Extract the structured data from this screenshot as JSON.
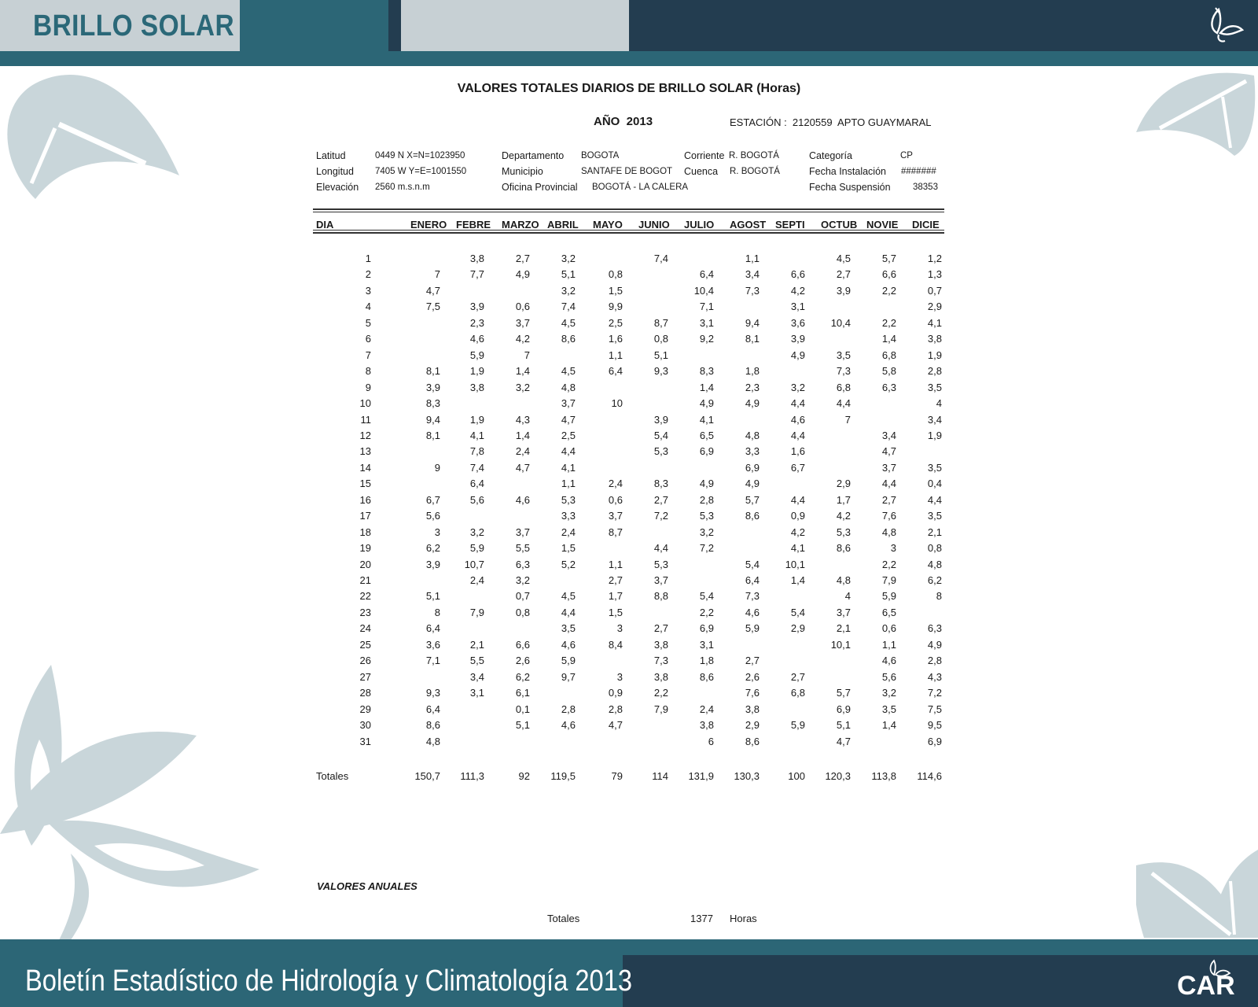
{
  "header": {
    "section_title": "BRILLO SOLAR"
  },
  "footer": {
    "title": "Boletín Estadístico de Hidrología y Climatología 2013",
    "logo_text": "CAR"
  },
  "document": {
    "title": "VALORES TOTALES DIARIOS DE BRILLO SOLAR (Horas)",
    "year_label": "AÑO  2013",
    "station": "ESTACIÓN :  2120559  APTO GUAYMARAL",
    "meta": {
      "latitud_label": "Latitud",
      "latitud_value": "0449 N X=N=1023950",
      "longitud_label": "Longitud",
      "longitud_value": "7405 W Y=E=1001550",
      "elevacion_label": "Elevación",
      "elevacion_value": "2560 m.s.n.m",
      "departamento_label": "Departamento",
      "departamento_value": "BOGOTA",
      "municipio_label": "Municipio",
      "municipio_value": "SANTAFE DE BOGOT",
      "oficina_label": "Oficina Provincial",
      "oficina_value": "BOGOTÁ - LA CALERA",
      "corriente_label": "Corriente",
      "corriente_value": "R. BOGOTÁ",
      "cuenca_label": "Cuenca",
      "cuenca_value": "R. BOGOTÁ",
      "categoria_label": "Categoría",
      "categoria_value": "CP",
      "instalacion_label": "Fecha Instalación",
      "instalacion_value": "#######",
      "suspension_label": "Fecha Suspensión",
      "suspension_value": "38353"
    },
    "table": {
      "day_header": "DIA",
      "months": [
        "ENERO",
        "FEBRE",
        "MARZO",
        "ABRIL",
        "MAYO",
        "JUNIO",
        "JULIO",
        "AGOST",
        "SEPTI",
        "OCTUB",
        "NOVIE",
        "DICIE"
      ],
      "rows": [
        [
          "1",
          "",
          "3,8",
          "2,7",
          "3,2",
          "",
          "7,4",
          "",
          "1,1",
          "",
          "4,5",
          "5,7",
          "1,2"
        ],
        [
          "2",
          "7",
          "7,7",
          "4,9",
          "5,1",
          "0,8",
          "",
          "6,4",
          "3,4",
          "6,6",
          "2,7",
          "6,6",
          "1,3"
        ],
        [
          "3",
          "4,7",
          "",
          "",
          "3,2",
          "1,5",
          "",
          "10,4",
          "7,3",
          "4,2",
          "3,9",
          "2,2",
          "0,7"
        ],
        [
          "4",
          "7,5",
          "3,9",
          "0,6",
          "7,4",
          "9,9",
          "",
          "7,1",
          "",
          "3,1",
          "",
          "",
          "2,9"
        ],
        [
          "5",
          "",
          "2,3",
          "3,7",
          "4,5",
          "2,5",
          "8,7",
          "3,1",
          "9,4",
          "3,6",
          "10,4",
          "2,2",
          "4,1"
        ],
        [
          "6",
          "",
          "4,6",
          "4,2",
          "8,6",
          "1,6",
          "0,8",
          "9,2",
          "8,1",
          "3,9",
          "",
          "1,4",
          "3,8"
        ],
        [
          "7",
          "",
          "5,9",
          "7",
          "",
          "1,1",
          "5,1",
          "",
          "",
          "4,9",
          "3,5",
          "6,8",
          "1,9"
        ],
        [
          "8",
          "8,1",
          "1,9",
          "1,4",
          "4,5",
          "6,4",
          "9,3",
          "8,3",
          "1,8",
          "",
          "7,3",
          "5,8",
          "2,8"
        ],
        [
          "9",
          "3,9",
          "3,8",
          "3,2",
          "4,8",
          "",
          "",
          "1,4",
          "2,3",
          "3,2",
          "6,8",
          "6,3",
          "3,5"
        ],
        [
          "10",
          "8,3",
          "",
          "",
          "3,7",
          "10",
          "",
          "4,9",
          "4,9",
          "4,4",
          "4,4",
          "",
          "4"
        ],
        [
          "11",
          "9,4",
          "1,9",
          "4,3",
          "4,7",
          "",
          "3,9",
          "4,1",
          "",
          "4,6",
          "7",
          "",
          "3,4"
        ],
        [
          "12",
          "8,1",
          "4,1",
          "1,4",
          "2,5",
          "",
          "5,4",
          "6,5",
          "4,8",
          "4,4",
          "",
          "3,4",
          "1,9"
        ],
        [
          "13",
          "",
          "7,8",
          "2,4",
          "4,4",
          "",
          "5,3",
          "6,9",
          "3,3",
          "1,6",
          "",
          "4,7",
          ""
        ],
        [
          "14",
          "9",
          "7,4",
          "4,7",
          "4,1",
          "",
          "",
          "",
          "6,9",
          "6,7",
          "",
          "3,7",
          "3,5"
        ],
        [
          "15",
          "",
          "6,4",
          "",
          "1,1",
          "2,4",
          "8,3",
          "4,9",
          "4,9",
          "",
          "2,9",
          "4,4",
          "0,4"
        ],
        [
          "16",
          "6,7",
          "5,6",
          "4,6",
          "5,3",
          "0,6",
          "2,7",
          "2,8",
          "5,7",
          "4,4",
          "1,7",
          "2,7",
          "4,4"
        ],
        [
          "17",
          "5,6",
          "",
          "",
          "3,3",
          "3,7",
          "7,2",
          "5,3",
          "8,6",
          "0,9",
          "4,2",
          "7,6",
          "3,5"
        ],
        [
          "18",
          "3",
          "3,2",
          "3,7",
          "2,4",
          "8,7",
          "",
          "3,2",
          "",
          "4,2",
          "5,3",
          "4,8",
          "2,1"
        ],
        [
          "19",
          "6,2",
          "5,9",
          "5,5",
          "1,5",
          "",
          "4,4",
          "7,2",
          "",
          "4,1",
          "8,6",
          "3",
          "0,8"
        ],
        [
          "20",
          "3,9",
          "10,7",
          "6,3",
          "5,2",
          "1,1",
          "5,3",
          "",
          "5,4",
          "10,1",
          "",
          "2,2",
          "4,8"
        ],
        [
          "21",
          "",
          "2,4",
          "3,2",
          "",
          "2,7",
          "3,7",
          "",
          "6,4",
          "1,4",
          "4,8",
          "7,9",
          "6,2"
        ],
        [
          "22",
          "5,1",
          "",
          "0,7",
          "4,5",
          "1,7",
          "8,8",
          "5,4",
          "7,3",
          "",
          "4",
          "5,9",
          "8"
        ],
        [
          "23",
          "8",
          "7,9",
          "0,8",
          "4,4",
          "1,5",
          "",
          "2,2",
          "4,6",
          "5,4",
          "3,7",
          "6,5",
          ""
        ],
        [
          "24",
          "6,4",
          "",
          "",
          "3,5",
          "3",
          "2,7",
          "6,9",
          "5,9",
          "2,9",
          "2,1",
          "0,6",
          "6,3"
        ],
        [
          "25",
          "3,6",
          "2,1",
          "6,6",
          "4,6",
          "8,4",
          "3,8",
          "3,1",
          "",
          "",
          "10,1",
          "1,1",
          "4,9"
        ],
        [
          "26",
          "7,1",
          "5,5",
          "2,6",
          "5,9",
          "",
          "7,3",
          "1,8",
          "2,7",
          "",
          "",
          "4,6",
          "2,8"
        ],
        [
          "27",
          "",
          "3,4",
          "6,2",
          "9,7",
          "3",
          "3,8",
          "8,6",
          "2,6",
          "2,7",
          "",
          "5,6",
          "4,3"
        ],
        [
          "28",
          "9,3",
          "3,1",
          "6,1",
          "",
          "0,9",
          "2,2",
          "",
          "7,6",
          "6,8",
          "5,7",
          "3,2",
          "7,2"
        ],
        [
          "29",
          "6,4",
          "",
          "0,1",
          "2,8",
          "2,8",
          "7,9",
          "2,4",
          "3,8",
          "",
          "6,9",
          "3,5",
          "7,5"
        ],
        [
          "30",
          "8,6",
          "",
          "5,1",
          "4,6",
          "4,7",
          "",
          "3,8",
          "2,9",
          "5,9",
          "5,1",
          "1,4",
          "9,5"
        ],
        [
          "31",
          "4,8",
          "",
          "",
          "",
          "",
          "",
          "6",
          "8,6",
          "",
          "4,7",
          "",
          "6,9"
        ]
      ],
      "totals_label": "Totales",
      "totals": [
        "150,7",
        "111,3",
        "92",
        "119,5",
        "79",
        "114",
        "131,9",
        "130,3",
        "100",
        "120,3",
        "113,8",
        "114,6"
      ]
    },
    "annual": {
      "label": "VALORES ANUALES",
      "totales_label": "Totales",
      "total_value": "1377",
      "unit": "Horas"
    }
  }
}
